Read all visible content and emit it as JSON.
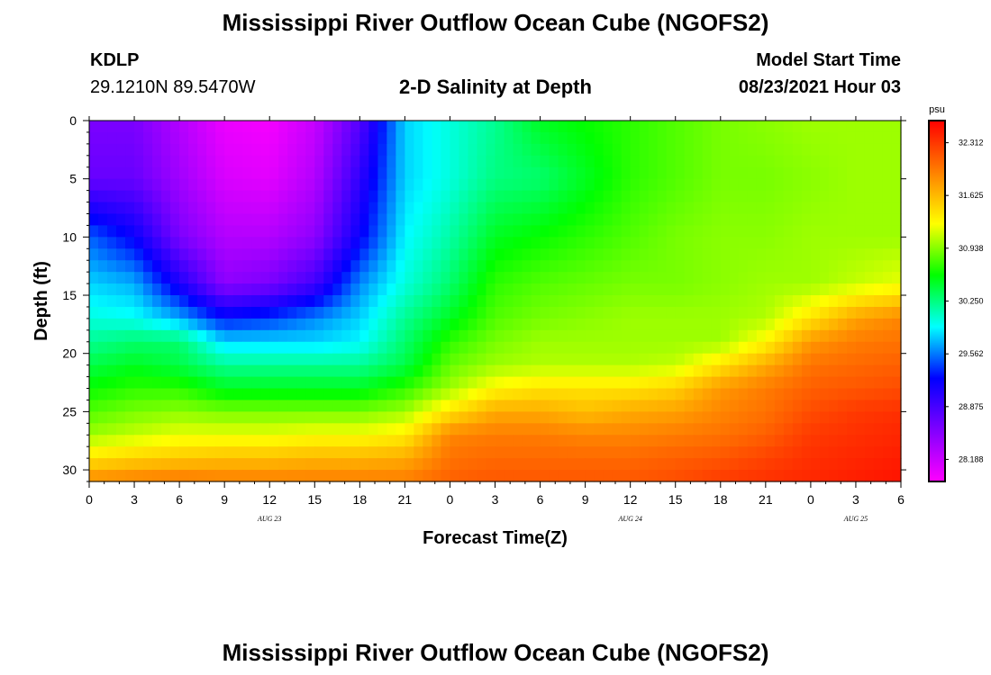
{
  "header": {
    "title": "Mississippi River Outflow Ocean Cube (NGOFS2)",
    "station_id": "KDLP",
    "station_coords": "29.1210N  89.5470W",
    "plot_title": "2-D Salinity at Depth",
    "model_start_label": "Model Start Time",
    "model_start_value": "08/23/2021 Hour 03"
  },
  "footer": {
    "title": "Mississippi River Outflow Ocean Cube (NGOFS2)"
  },
  "chart_data": {
    "type": "heatmap",
    "title": "2-D Salinity at Depth",
    "xlabel": "Forecast Time(Z)",
    "ylabel": "Depth (ft)",
    "x_hours_since_aug23_00": [
      0,
      54
    ],
    "x_tick_labels": [
      "0",
      "3",
      "6",
      "9",
      "12",
      "15",
      "18",
      "21",
      "0",
      "3",
      "6",
      "9",
      "12",
      "15",
      "18",
      "21",
      "0",
      "3",
      "6"
    ],
    "date_labels": [
      {
        "text": "AUG 23",
        "hour": 12
      },
      {
        "text": "AUG 24",
        "hour": 36
      },
      {
        "text": "AUG 25",
        "hour": 51
      }
    ],
    "y_range_ft": [
      0,
      31
    ],
    "y_ticks": [
      0,
      5,
      10,
      15,
      20,
      25,
      30
    ],
    "y_inverted": true,
    "colorbar": {
      "unit": "psu",
      "range": [
        27.9,
        32.6
      ],
      "tick_values": [
        32.312,
        31.625,
        30.938,
        30.25,
        29.562,
        28.875,
        28.188
      ],
      "tick_labels": [
        "32.312",
        "31.625",
        "30.938",
        "30.250",
        "29.562",
        "28.875",
        "28.188"
      ],
      "colors": [
        "#ff00ff",
        "#8000ff",
        "#0000ff",
        "#00ffff",
        "#00ff00",
        "#ffff00",
        "#ff8000",
        "#ff0000"
      ]
    },
    "samples": {
      "depths_ft": [
        0,
        5,
        10,
        14,
        17,
        19,
        21,
        23,
        25,
        27,
        29,
        31
      ],
      "hours": [
        0,
        3,
        6,
        9,
        12,
        15,
        18,
        21,
        24,
        27,
        30,
        33,
        36,
        39,
        42,
        45,
        48,
        51,
        54
      ],
      "salinity_psu": [
        [
          28.6,
          28.6,
          28.3,
          28.0,
          27.95,
          28.2,
          28.8,
          29.8,
          30.0,
          30.2,
          30.5,
          30.6,
          30.7,
          30.8,
          30.9,
          30.95,
          31.0,
          31.0,
          31.0
        ],
        [
          28.7,
          28.7,
          28.4,
          28.1,
          28.05,
          28.3,
          29.0,
          29.8,
          30.0,
          30.25,
          30.3,
          30.5,
          30.7,
          30.8,
          30.9,
          30.9,
          30.95,
          31.0,
          31.0
        ],
        [
          29.5,
          29.2,
          28.6,
          28.3,
          28.3,
          28.5,
          29.2,
          29.9,
          30.15,
          30.5,
          30.6,
          30.7,
          30.8,
          30.9,
          30.95,
          30.95,
          31.0,
          31.0,
          31.0
        ],
        [
          29.8,
          29.7,
          29.1,
          28.5,
          28.6,
          28.9,
          29.6,
          30.0,
          30.3,
          30.7,
          30.8,
          30.85,
          30.9,
          30.9,
          30.95,
          31.0,
          31.0,
          31.1,
          31.2
        ],
        [
          30.0,
          29.95,
          29.7,
          29.3,
          29.4,
          29.6,
          29.8,
          30.2,
          30.5,
          30.8,
          30.9,
          30.95,
          31.0,
          31.0,
          31.0,
          31.05,
          31.4,
          31.75,
          31.9
        ],
        [
          30.2,
          30.3,
          30.3,
          29.8,
          29.8,
          29.8,
          29.9,
          30.3,
          30.7,
          30.9,
          31.0,
          31.0,
          31.0,
          31.0,
          31.0,
          31.3,
          31.8,
          31.95,
          32.0
        ],
        [
          30.4,
          30.5,
          30.4,
          30.2,
          30.2,
          30.2,
          30.2,
          30.4,
          30.85,
          31.0,
          31.05,
          31.05,
          31.05,
          31.1,
          31.4,
          31.7,
          32.0,
          32.05,
          32.1
        ],
        [
          30.6,
          30.7,
          30.7,
          30.5,
          30.5,
          30.5,
          30.5,
          30.7,
          31.0,
          31.3,
          31.4,
          31.4,
          31.4,
          31.5,
          31.8,
          31.95,
          32.1,
          32.15,
          32.2
        ],
        [
          30.8,
          30.9,
          30.95,
          30.9,
          30.9,
          30.9,
          30.9,
          31.0,
          31.4,
          31.7,
          31.7,
          31.6,
          31.7,
          31.75,
          31.9,
          32.0,
          32.2,
          32.3,
          32.35
        ],
        [
          31.0,
          31.1,
          31.2,
          31.2,
          31.2,
          31.25,
          31.25,
          31.35,
          31.9,
          31.95,
          31.95,
          31.9,
          31.9,
          31.95,
          32.0,
          32.1,
          32.3,
          32.35,
          32.4
        ],
        [
          31.4,
          31.5,
          31.55,
          31.6,
          31.6,
          31.65,
          31.65,
          31.7,
          32.0,
          32.05,
          32.05,
          32.05,
          32.05,
          32.1,
          32.15,
          32.25,
          32.35,
          32.4,
          32.45
        ],
        [
          31.9,
          31.95,
          32.0,
          31.95,
          31.95,
          31.95,
          31.95,
          31.95,
          32.1,
          32.15,
          32.15,
          32.15,
          32.15,
          32.2,
          32.3,
          32.35,
          32.4,
          32.45,
          32.5
        ]
      ]
    }
  }
}
